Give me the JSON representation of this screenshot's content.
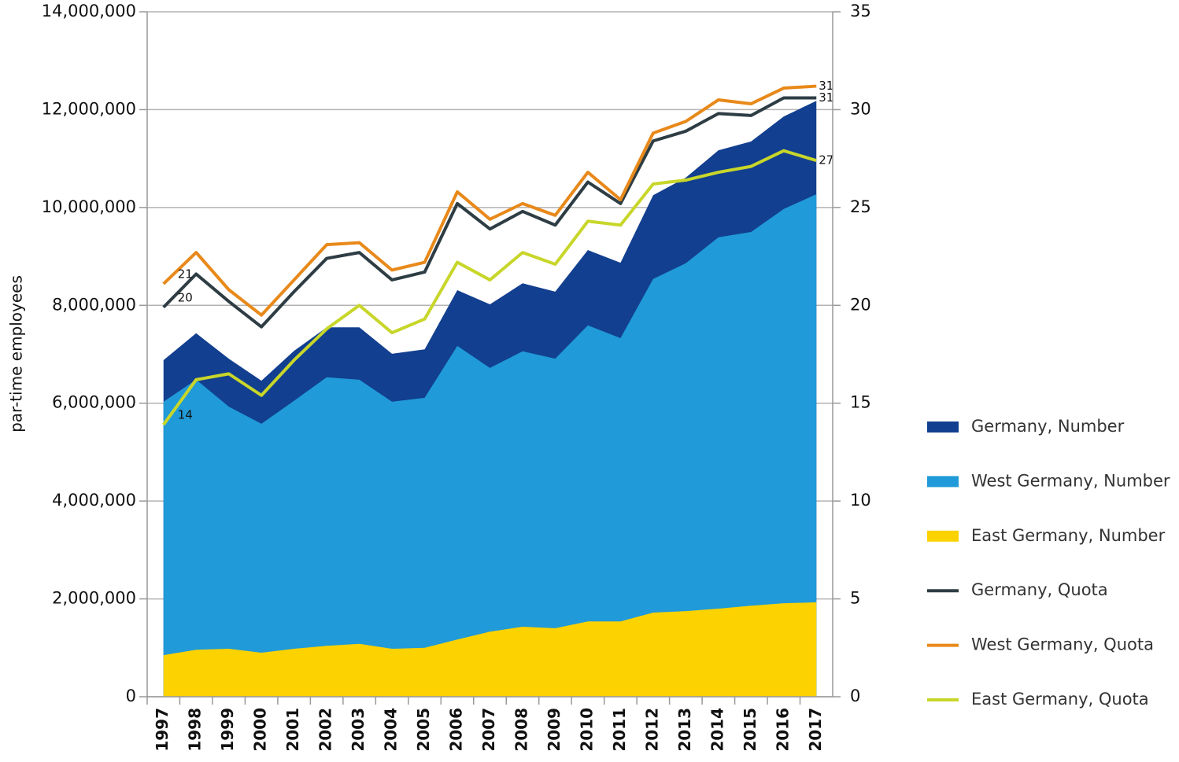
{
  "chart_data": {
    "type": "area-line",
    "y_axis_label": "par-time employees",
    "categories": [
      "1997",
      "1998",
      "1999",
      "2000",
      "2001",
      "2002",
      "2003",
      "2004",
      "2005",
      "2006",
      "2007",
      "2008",
      "2009",
      "2010",
      "2011",
      "2012",
      "2013",
      "2014",
      "2015",
      "2016",
      "2017"
    ],
    "ylim": [
      0,
      14000000
    ],
    "yticks": [
      0,
      {
        "value": 2000000,
        "label": "2,000,000"
      },
      {
        "value": 4000000,
        "label": "4,000,000"
      },
      {
        "value": 6000000,
        "label": "6,000,000"
      },
      {
        "value": 8000000,
        "label": "8,000,000"
      },
      {
        "value": 10000000,
        "label": "10,000,000"
      },
      {
        "value": 12000000,
        "label": "12,000,000"
      },
      {
        "value": 14000000,
        "label": "14,000,000"
      }
    ],
    "y2lim": [
      0,
      35
    ],
    "y2ticks": [
      0,
      5,
      10,
      15,
      20,
      25,
      30,
      35
    ],
    "grid": true,
    "legend": "right",
    "series": [
      {
        "name": "Germany, Number",
        "kind": "area",
        "color": "#123f8f",
        "values": [
          6880000,
          7430000,
          6910000,
          6460000,
          7070000,
          7550000,
          7550000,
          7010000,
          7100000,
          8310000,
          8020000,
          8450000,
          8280000,
          9130000,
          8870000,
          10250000,
          10610000,
          11170000,
          11350000,
          11860000,
          12180000
        ]
      },
      {
        "name": "West Germany, Number",
        "kind": "area",
        "color": "#209ad8",
        "values": [
          6030000,
          6480000,
          5930000,
          5580000,
          6050000,
          6530000,
          6480000,
          6030000,
          6110000,
          7170000,
          6720000,
          7060000,
          6910000,
          7590000,
          7330000,
          8540000,
          8860000,
          9390000,
          9500000,
          9970000,
          10270000
        ]
      },
      {
        "name": "East Germany, Number",
        "kind": "area",
        "color": "#fcd200",
        "values": [
          850000,
          960000,
          980000,
          900000,
          980000,
          1040000,
          1080000,
          980000,
          1000000,
          1170000,
          1330000,
          1430000,
          1400000,
          1540000,
          1540000,
          1720000,
          1750000,
          1800000,
          1860000,
          1910000,
          1930000
        ]
      },
      {
        "name": "Germany, Quota",
        "kind": "line",
        "axis": "y2",
        "color": "#2e3d44",
        "values": [
          19.9,
          21.6,
          20.2,
          18.9,
          20.7,
          22.4,
          22.7,
          21.3,
          21.7,
          25.2,
          23.9,
          24.8,
          24.1,
          26.3,
          25.2,
          28.4,
          28.9,
          29.8,
          29.7,
          30.6,
          30.6
        ],
        "value_labels": [
          "20",
          null,
          null,
          null,
          null,
          null,
          null,
          null,
          null,
          null,
          null,
          null,
          null,
          null,
          null,
          null,
          null,
          null,
          null,
          null,
          "31"
        ]
      },
      {
        "name": "West Germany, Quota",
        "kind": "line",
        "axis": "y2",
        "color": "#e8891a",
        "values": [
          21.1,
          22.7,
          20.8,
          19.5,
          21.3,
          23.1,
          23.2,
          21.8,
          22.2,
          25.8,
          24.4,
          25.2,
          24.6,
          26.8,
          25.4,
          28.8,
          29.4,
          30.5,
          30.3,
          31.1,
          31.2
        ],
        "value_labels": [
          "21",
          null,
          null,
          null,
          null,
          null,
          null,
          null,
          null,
          null,
          null,
          null,
          null,
          null,
          null,
          null,
          null,
          null,
          null,
          null,
          "31"
        ]
      },
      {
        "name": "East Germany, Quota",
        "kind": "line",
        "axis": "y2",
        "color": "#c8d62a",
        "values": [
          13.9,
          16.2,
          16.5,
          15.4,
          17.2,
          18.8,
          20.0,
          18.6,
          19.3,
          22.2,
          21.3,
          22.7,
          22.1,
          24.3,
          24.1,
          26.2,
          26.4,
          26.8,
          27.1,
          27.9,
          27.4
        ],
        "value_labels": [
          "14",
          null,
          null,
          null,
          null,
          null,
          null,
          null,
          null,
          null,
          null,
          null,
          null,
          null,
          null,
          null,
          null,
          null,
          null,
          null,
          "27"
        ]
      }
    ]
  }
}
